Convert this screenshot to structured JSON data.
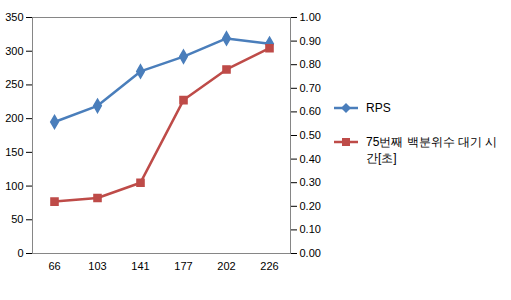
{
  "chart_data": {
    "type": "line",
    "categories": [
      "66",
      "103",
      "141",
      "177",
      "202",
      "226"
    ],
    "series": [
      {
        "name": "RPS",
        "color": "#4a7ebb",
        "marker": "diamond",
        "values": [
          195,
          219,
          270,
          292,
          319,
          311
        ]
      },
      {
        "name": "75번째 백분위수 대기 시간[초]",
        "color": "#be4b48",
        "marker": "square",
        "axis": "y2",
        "values": [
          0.22,
          0.235,
          0.3,
          0.65,
          0.78,
          0.87
        ]
      }
    ],
    "ylim": [
      0,
      350
    ],
    "yticks": [
      0,
      50,
      100,
      150,
      200,
      250,
      300,
      350
    ],
    "y2lim": [
      0,
      1
    ],
    "y2ticks": [
      {
        "value": 0,
        "label": "0.00"
      },
      {
        "value": 0.1,
        "label": "0.10"
      },
      {
        "value": 0.2,
        "label": "0.20"
      },
      {
        "value": 0.3,
        "label": "0.30"
      },
      {
        "value": 0.4,
        "label": "0.40"
      },
      {
        "value": 0.5,
        "label": "0.50"
      },
      {
        "value": 0.6,
        "label": "0.60"
      },
      {
        "value": 0.7,
        "label": "0.70"
      },
      {
        "value": 0.8,
        "label": "0.80"
      },
      {
        "value": 0.9,
        "label": "0.90"
      },
      {
        "value": 1,
        "label": "1.00"
      }
    ],
    "grid": false,
    "legend": "right"
  }
}
